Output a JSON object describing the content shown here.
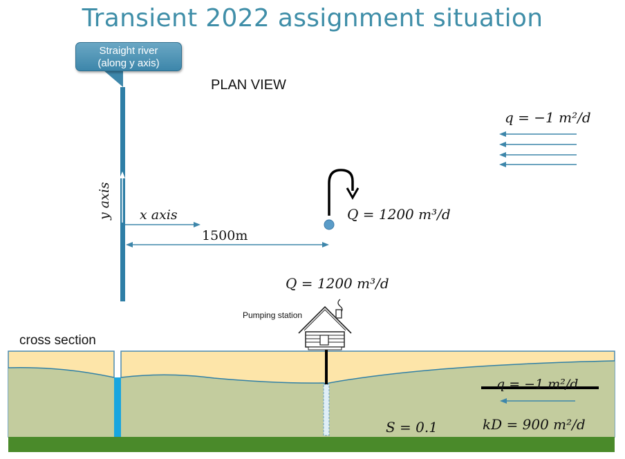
{
  "title": "Transient 2022 assignment situation",
  "callout": {
    "line1": "Straight river",
    "line2": "(along y axis)"
  },
  "plan_view_label": "PLAN VIEW",
  "y_axis_label": "y axis",
  "x_axis_label": "x axis",
  "distance_label": "1500m",
  "well_Q_label": "Q = 1200 m³/d",
  "flow_q_label": "q = −1 m²/d",
  "station_Q_label": "Q = 1200 m³/d",
  "pumping_station_label": "Pumping station",
  "cross_section_label": "cross section",
  "struck_q_label": "q = −1 m²/d",
  "storage_label": "S = 0.1",
  "transmissivity_label": "kD = 900 m²/d",
  "colors": {
    "river": "#2e7ea6",
    "aquifer": "#c3cc9e",
    "unsaturated": "#fde5a9",
    "base": "#4a8a2a",
    "water_line": "#2f7fa6"
  }
}
